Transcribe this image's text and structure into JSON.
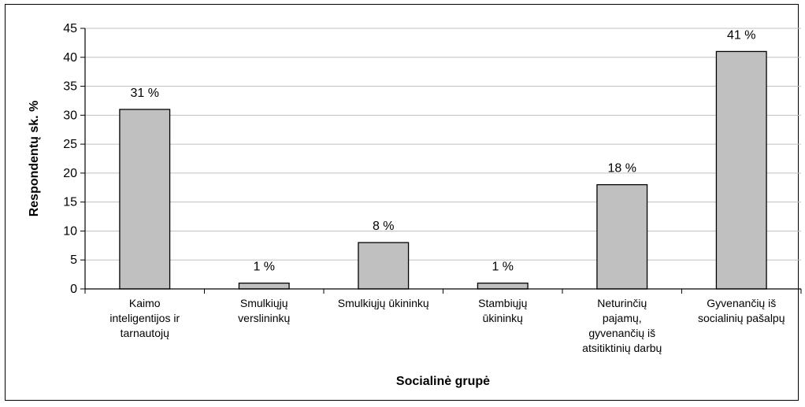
{
  "chart_data": {
    "type": "bar",
    "categories": [
      [
        "Kaimo",
        "inteligentijos ir",
        "tarnautojų"
      ],
      [
        "Smulkiųjų",
        "verslininkų"
      ],
      [
        "Smulkiųjų ūkininkų"
      ],
      [
        "Stambiųjų",
        "ūkininkų"
      ],
      [
        "Neturinčių",
        "pajamų,",
        "gyvenančių iš",
        "atsitiktinių darbų"
      ],
      [
        "Gyvenančių iš",
        "socialinių pašalpų"
      ]
    ],
    "values": [
      31,
      1,
      8,
      1,
      18,
      41
    ],
    "data_labels": [
      "31 %",
      "1 %",
      "8 %",
      "1 %",
      "18 %",
      "41 %"
    ],
    "xlabel": "Socialinė grupė",
    "ylabel": "Respondentų sk. %",
    "ylim": [
      0,
      45
    ],
    "yticks": [
      0,
      5,
      10,
      15,
      20,
      25,
      30,
      35,
      40,
      45
    ],
    "grid": true,
    "bar_color": "#c0c0c0",
    "bar_edge_color": "#000000",
    "grid_color": "#c0c0c0"
  }
}
